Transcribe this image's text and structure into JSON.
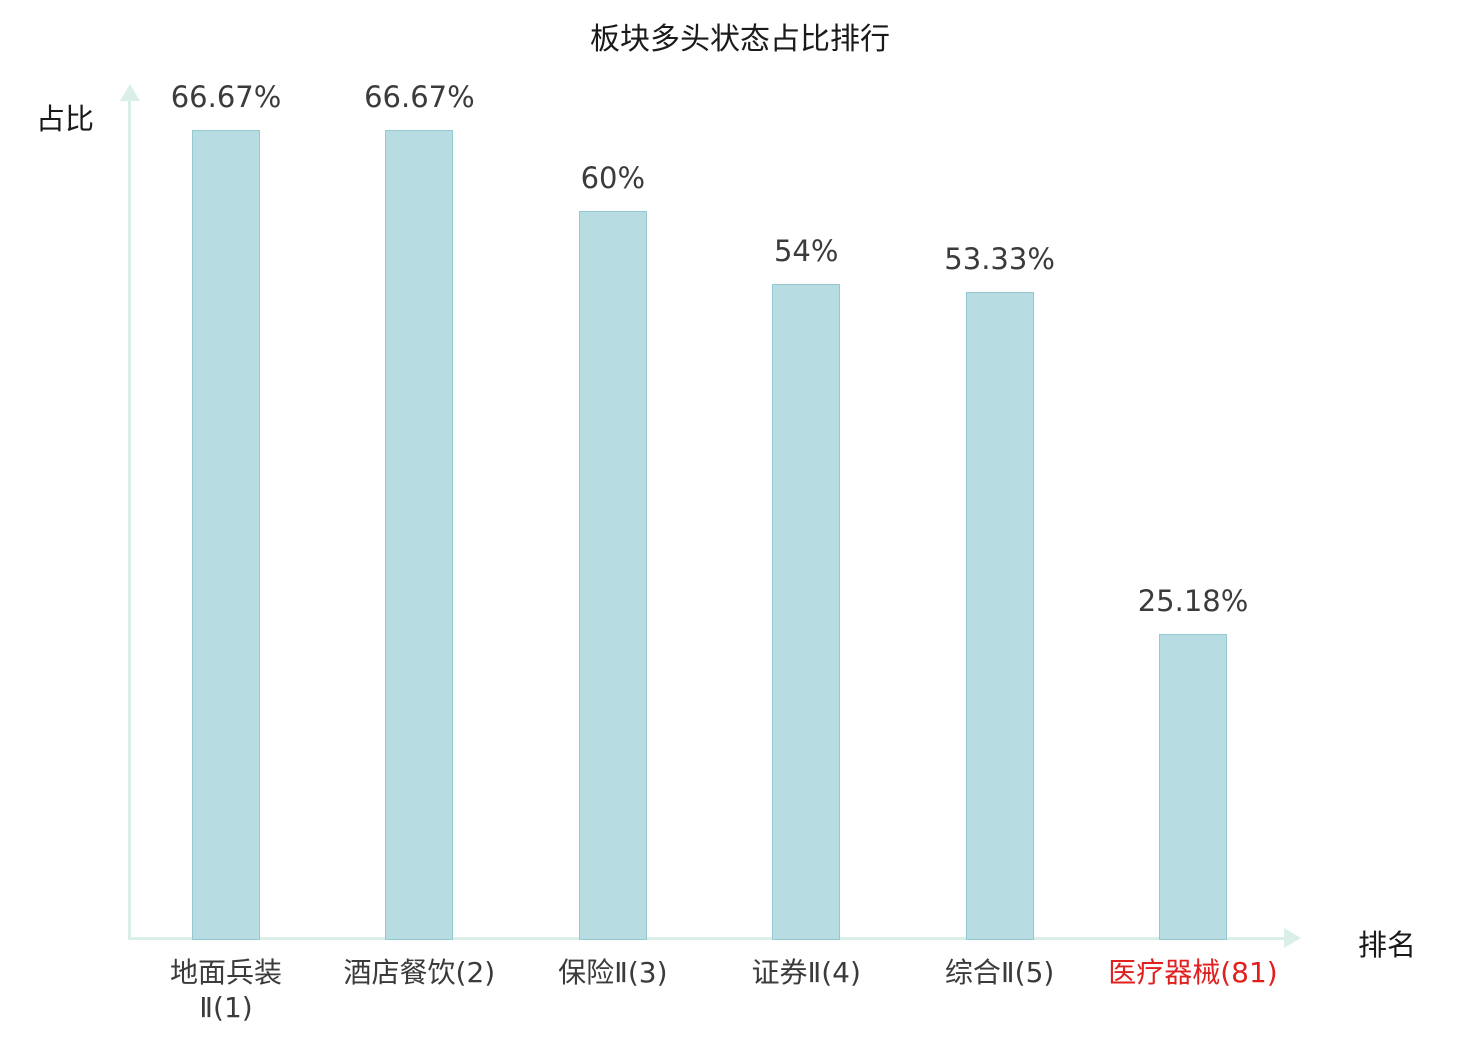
{
  "chart_data": {
    "type": "bar",
    "title": "板块多头状态占比排行",
    "xlabel": "排名",
    "ylabel": "占比",
    "ylim": [
      0,
      70
    ],
    "grid": false,
    "legend": "none",
    "bar_color": "#b7dde2",
    "bar_border_color": "#94c9d2",
    "axis_color": "#d9efe8",
    "text_color": "#3b3b3b",
    "highlight_color": "#e01f1f",
    "categories": [
      "地面兵装Ⅱ(1)",
      "酒店餐饮(2)",
      "保险Ⅱ(3)",
      "证券Ⅱ(4)",
      "综合Ⅱ(5)",
      "医疗器械(81)"
    ],
    "values": [
      66.67,
      66.67,
      60,
      54,
      53.33,
      25.18
    ],
    "bars": [
      {
        "label": "地面兵装\nⅡ(1)",
        "value": 66.67,
        "value_label": "66.67%",
        "highlight": false
      },
      {
        "label": "酒店餐饮(2)",
        "value": 66.67,
        "value_label": "66.67%",
        "highlight": false
      },
      {
        "label": "保险Ⅱ(3)",
        "value": 60,
        "value_label": "60%",
        "highlight": false
      },
      {
        "label": "证券Ⅱ(4)",
        "value": 54,
        "value_label": "54%",
        "highlight": false
      },
      {
        "label": "综合Ⅱ(5)",
        "value": 53.33,
        "value_label": "53.33%",
        "highlight": false
      },
      {
        "label": "医疗器械(81)",
        "value": 25.18,
        "value_label": "25.18%",
        "highlight": true
      }
    ]
  }
}
